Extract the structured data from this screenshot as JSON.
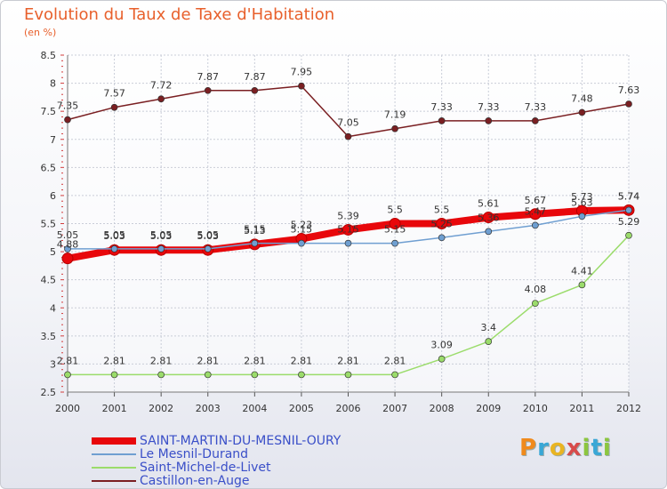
{
  "header": {
    "title": "Evolution du Taux de Taxe d'Habitation",
    "unit": "(en %)"
  },
  "logo": {
    "letters": [
      "P",
      "r",
      "o",
      "x",
      "i",
      "t",
      "i"
    ],
    "colors": [
      "#f08a1c",
      "#39a7d6",
      "#e9b422",
      "#d84b4b",
      "#8cc63f",
      "#3aa7d6",
      "#8cc63f"
    ]
  },
  "chart_data": {
    "type": "line",
    "x": [
      "2000",
      "2001",
      "2002",
      "2003",
      "2004",
      "2005",
      "2006",
      "2007",
      "2008",
      "2009",
      "2010",
      "2011",
      "2012"
    ],
    "ylim": [
      2.5,
      8.5
    ],
    "yticks": [
      "2.5",
      "3",
      "3.5",
      "4",
      "4.5",
      "5",
      "5.5",
      "6",
      "6.5",
      "7",
      "7.5",
      "8",
      "8.5"
    ],
    "grid": true,
    "legend_position": "bottom-left",
    "series": [
      {
        "name": "SAINT-MARTIN-DU-MESNIL-OURY",
        "color": "#e8070b",
        "values": [
          4.88,
          5.03,
          5.03,
          5.03,
          5.13,
          5.23,
          5.39,
          5.5,
          5.5,
          5.61,
          5.67,
          5.73,
          5.74
        ],
        "labels": [
          "4.88",
          "5.03",
          "5.03",
          "5.03",
          "5.13",
          "5.23",
          "5.39",
          "5.5",
          "5.5",
          "5.61",
          "5.67",
          "5.73",
          "5.74"
        ]
      },
      {
        "name": "Le Mesnil-Durand",
        "color": "#6f9fd1",
        "values": [
          5.05,
          5.05,
          5.05,
          5.05,
          5.15,
          5.15,
          5.15,
          5.15,
          5.25,
          5.36,
          5.47,
          5.63,
          5.74
        ],
        "labels": [
          "5.05",
          "5.05",
          "5.05",
          "5.05",
          "5.15",
          "5.15",
          "5.15",
          "5.15",
          "5.25",
          "5.36",
          "5.47",
          "5.63",
          "5.74"
        ]
      },
      {
        "name": "Saint-Michel-de-Livet",
        "color": "#9bdc6b",
        "values": [
          2.81,
          2.81,
          2.81,
          2.81,
          2.81,
          2.81,
          2.81,
          2.81,
          3.09,
          3.4,
          4.08,
          4.41,
          5.29
        ],
        "labels": [
          "2.81",
          "2.81",
          "2.81",
          "2.81",
          "2.81",
          "2.81",
          "2.81",
          "2.81",
          "3.09",
          "3.4",
          "4.08",
          "4.41",
          "5.29"
        ]
      },
      {
        "name": "Castillon-en-Auge",
        "color": "#7a1f22",
        "values": [
          7.35,
          7.57,
          7.72,
          7.87,
          7.87,
          7.95,
          7.05,
          7.19,
          7.33,
          7.33,
          7.33,
          7.48,
          7.63
        ],
        "labels": [
          "7.35",
          "7.57",
          "7.72",
          "7.87",
          "7.87",
          "7.95",
          "7.05",
          "7.19",
          "7.33",
          "7.33",
          "7.33",
          "7.48",
          "7.63"
        ]
      }
    ]
  }
}
